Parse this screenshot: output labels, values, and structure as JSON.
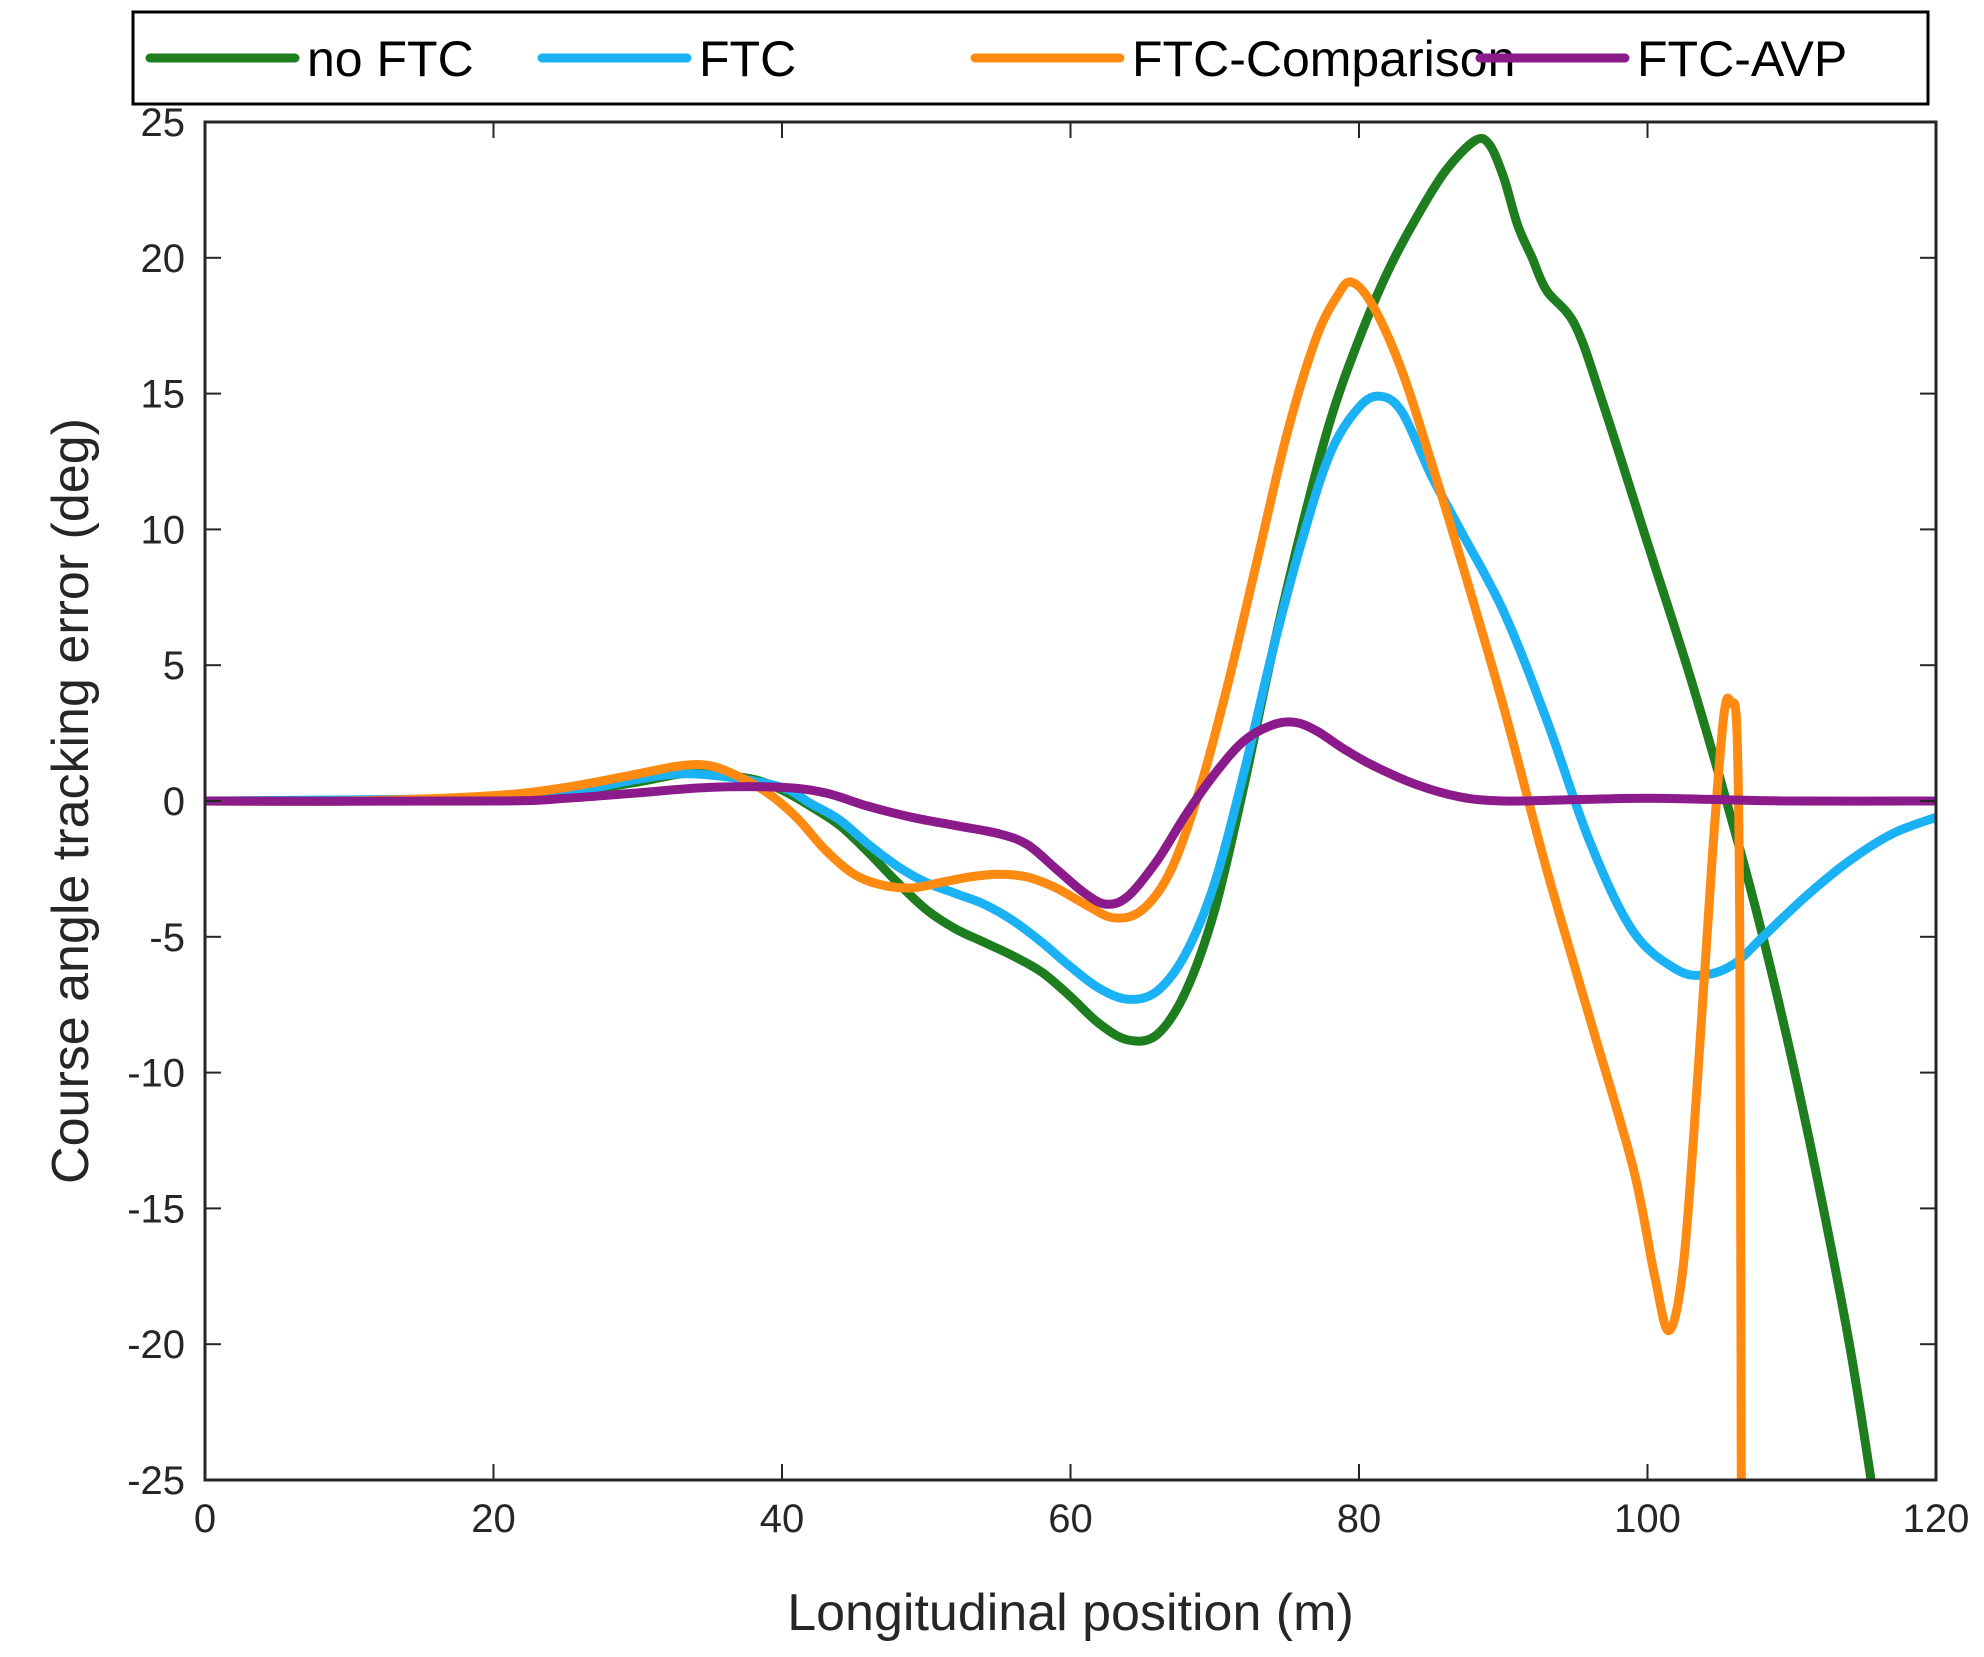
{
  "chart_data": {
    "type": "line",
    "title": "",
    "xlabel": "Longitudinal position (m)",
    "ylabel": "Course angle tracking error (deg)",
    "xlim": [
      0,
      120
    ],
    "ylim": [
      -25,
      25
    ],
    "xticks": [
      0,
      20,
      40,
      60,
      80,
      100,
      120
    ],
    "yticks": [
      25,
      20,
      15,
      10,
      5,
      0,
      -5,
      -10,
      -15,
      -20,
      -25
    ],
    "grid": false,
    "legend_position": "top (outside, horizontal)",
    "series": [
      {
        "name": "no FTC",
        "color": "#1e7d1e",
        "points": [
          [
            0,
            0
          ],
          [
            10,
            0
          ],
          [
            20,
            0.1
          ],
          [
            25,
            0.3
          ],
          [
            30,
            0.7
          ],
          [
            33,
            1.0
          ],
          [
            35,
            1.0
          ],
          [
            38,
            0.8
          ],
          [
            40,
            0.4
          ],
          [
            42,
            -0.2
          ],
          [
            44,
            -0.9
          ],
          [
            46,
            -1.9
          ],
          [
            48,
            -3.0
          ],
          [
            50,
            -4.0
          ],
          [
            52,
            -4.7
          ],
          [
            54,
            -5.2
          ],
          [
            56,
            -5.7
          ],
          [
            58,
            -6.3
          ],
          [
            60,
            -7.2
          ],
          [
            62,
            -8.2
          ],
          [
            64,
            -8.8
          ],
          [
            66,
            -8.6
          ],
          [
            68,
            -7.0
          ],
          [
            70,
            -4.0
          ],
          [
            72,
            0.5
          ],
          [
            74,
            5.5
          ],
          [
            76,
            10.0
          ],
          [
            78,
            14.0
          ],
          [
            80,
            17.0
          ],
          [
            82,
            19.5
          ],
          [
            84,
            21.5
          ],
          [
            86,
            23.2
          ],
          [
            88,
            24.3
          ],
          [
            89,
            24.2
          ],
          [
            90,
            23.0
          ],
          [
            91,
            21.2
          ],
          [
            92,
            20.0
          ],
          [
            93,
            18.8
          ],
          [
            95,
            17.5
          ],
          [
            97,
            14.5
          ],
          [
            100,
            9.5
          ],
          [
            103,
            4.5
          ],
          [
            106,
            -1.0
          ],
          [
            108,
            -5.0
          ],
          [
            110,
            -9.5
          ],
          [
            112,
            -14.5
          ],
          [
            114,
            -20.0
          ],
          [
            115.5,
            -25
          ]
        ]
      },
      {
        "name": "FTC",
        "color": "#1ab2f5",
        "points": [
          [
            0,
            0
          ],
          [
            20,
            0.1
          ],
          [
            25,
            0.3
          ],
          [
            30,
            0.8
          ],
          [
            33,
            1.0
          ],
          [
            36,
            0.9
          ],
          [
            40,
            0.5
          ],
          [
            42,
            -0.1
          ],
          [
            44,
            -0.7
          ],
          [
            46,
            -1.6
          ],
          [
            48,
            -2.4
          ],
          [
            50,
            -3.0
          ],
          [
            52,
            -3.4
          ],
          [
            54,
            -3.8
          ],
          [
            56,
            -4.4
          ],
          [
            58,
            -5.2
          ],
          [
            60,
            -6.1
          ],
          [
            62,
            -6.9
          ],
          [
            64,
            -7.3
          ],
          [
            66,
            -7.0
          ],
          [
            68,
            -5.6
          ],
          [
            70,
            -3.0
          ],
          [
            72,
            1.0
          ],
          [
            74,
            5.5
          ],
          [
            76,
            9.5
          ],
          [
            78,
            12.8
          ],
          [
            80,
            14.5
          ],
          [
            81.5,
            14.9
          ],
          [
            83,
            14.3
          ],
          [
            85,
            12.0
          ],
          [
            87,
            10.0
          ],
          [
            90,
            7.0
          ],
          [
            93,
            3.0
          ],
          [
            96,
            -1.5
          ],
          [
            99,
            -4.8
          ],
          [
            102,
            -6.2
          ],
          [
            104,
            -6.4
          ],
          [
            106,
            -6.0
          ],
          [
            108,
            -5.0
          ],
          [
            111,
            -3.5
          ],
          [
            114,
            -2.2
          ],
          [
            117,
            -1.2
          ],
          [
            120,
            -0.6
          ]
        ]
      },
      {
        "name": "FTC-Comparison",
        "color": "#ff8a12",
        "points": [
          [
            0,
            0
          ],
          [
            10,
            0
          ],
          [
            20,
            0.2
          ],
          [
            25,
            0.5
          ],
          [
            30,
            1.0
          ],
          [
            33,
            1.3
          ],
          [
            35,
            1.3
          ],
          [
            37,
            0.9
          ],
          [
            39,
            0.3
          ],
          [
            41,
            -0.6
          ],
          [
            43,
            -1.8
          ],
          [
            45,
            -2.7
          ],
          [
            47,
            -3.1
          ],
          [
            49,
            -3.2
          ],
          [
            51,
            -3.0
          ],
          [
            53,
            -2.8
          ],
          [
            55,
            -2.7
          ],
          [
            57,
            -2.8
          ],
          [
            59,
            -3.2
          ],
          [
            61,
            -3.8
          ],
          [
            63,
            -4.3
          ],
          [
            65,
            -4.0
          ],
          [
            67,
            -2.5
          ],
          [
            69,
            0.5
          ],
          [
            71,
            4.5
          ],
          [
            73,
            9.0
          ],
          [
            75,
            13.5
          ],
          [
            77,
            17.0
          ],
          [
            78.5,
            18.6
          ],
          [
            79.5,
            19.1
          ],
          [
            81,
            18.2
          ],
          [
            83,
            15.8
          ],
          [
            85,
            12.5
          ],
          [
            87,
            9.0
          ],
          [
            90,
            3.5
          ],
          [
            93,
            -2.5
          ],
          [
            96,
            -8.0
          ],
          [
            99,
            -13.5
          ],
          [
            100.5,
            -17.5
          ],
          [
            101.5,
            -19.5
          ],
          [
            102.5,
            -17.0
          ],
          [
            103.5,
            -10.0
          ],
          [
            104.5,
            -2.0
          ],
          [
            105.3,
            3.2
          ],
          [
            105.8,
            3.6
          ],
          [
            106.2,
            2.6
          ],
          [
            106.4,
            -5.0
          ],
          [
            106.5,
            -25
          ]
        ]
      },
      {
        "name": "FTC-AVP",
        "color": "#8b1a8b",
        "points": [
          [
            0,
            0
          ],
          [
            20,
            0
          ],
          [
            25,
            0.1
          ],
          [
            30,
            0.3
          ],
          [
            35,
            0.5
          ],
          [
            40,
            0.5
          ],
          [
            43,
            0.3
          ],
          [
            46,
            -0.2
          ],
          [
            49,
            -0.6
          ],
          [
            52,
            -0.9
          ],
          [
            55,
            -1.2
          ],
          [
            57,
            -1.6
          ],
          [
            59,
            -2.5
          ],
          [
            61,
            -3.4
          ],
          [
            62.5,
            -3.8
          ],
          [
            64,
            -3.5
          ],
          [
            66,
            -2.2
          ],
          [
            68,
            -0.5
          ],
          [
            70,
            1.0
          ],
          [
            72,
            2.2
          ],
          [
            74,
            2.8
          ],
          [
            75.5,
            2.9
          ],
          [
            77,
            2.6
          ],
          [
            79,
            1.9
          ],
          [
            81,
            1.3
          ],
          [
            84,
            0.6
          ],
          [
            87,
            0.15
          ],
          [
            90,
            0
          ],
          [
            95,
            0.05
          ],
          [
            100,
            0.1
          ],
          [
            105,
            0.05
          ],
          [
            110,
            0
          ],
          [
            120,
            0
          ]
        ]
      }
    ]
  }
}
